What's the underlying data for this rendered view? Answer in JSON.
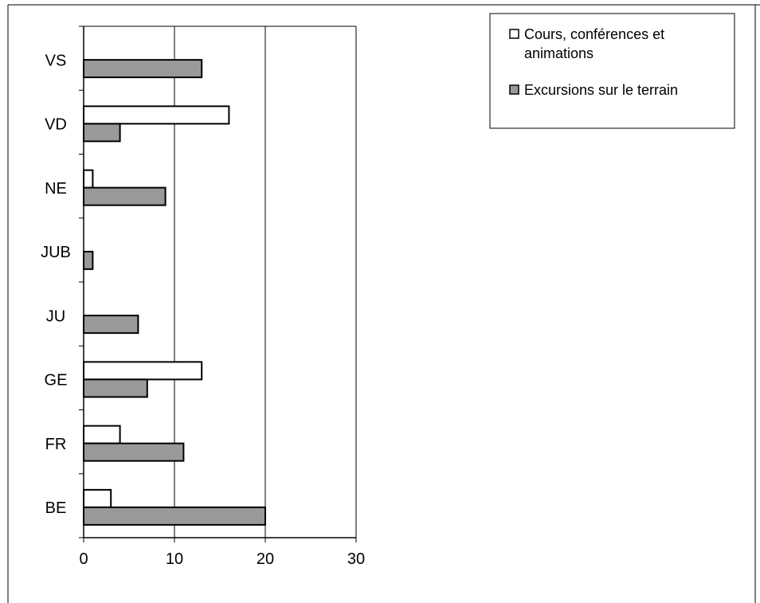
{
  "chart_data": {
    "type": "bar",
    "orientation": "horizontal",
    "title": "",
    "xlabel": "",
    "ylabel": "",
    "categories": [
      "VS",
      "VD",
      "NE",
      "JUB",
      "JU",
      "GE",
      "FR",
      "BE"
    ],
    "series": [
      {
        "name": "Cours, conférences et animations",
        "color": "#ffffff",
        "values": [
          0,
          16,
          1,
          0,
          0,
          13,
          4,
          3
        ]
      },
      {
        "name": "Excursions sur le terrain",
        "color": "#999999",
        "values": [
          13,
          4,
          9,
          1,
          6,
          7,
          11,
          20
        ]
      }
    ],
    "xlim": [
      0,
      30
    ],
    "xticks": [
      "0",
      "10",
      "20",
      "30"
    ],
    "grid": "vertical",
    "legend_position": "top-right"
  }
}
